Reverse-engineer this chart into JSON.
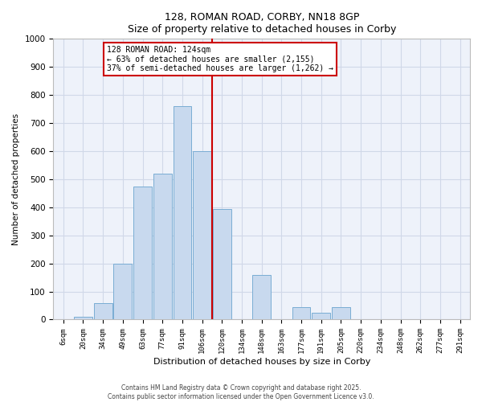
{
  "title": "128, ROMAN ROAD, CORBY, NN18 8GP",
  "subtitle": "Size of property relative to detached houses in Corby",
  "xlabel": "Distribution of detached houses by size in Corby",
  "ylabel": "Number of detached properties",
  "bar_labels": [
    "6sqm",
    "20sqm",
    "34sqm",
    "49sqm",
    "63sqm",
    "77sqm",
    "91sqm",
    "106sqm",
    "120sqm",
    "134sqm",
    "148sqm",
    "163sqm",
    "177sqm",
    "191sqm",
    "205sqm",
    "220sqm",
    "234sqm",
    "248sqm",
    "262sqm",
    "277sqm",
    "291sqm"
  ],
  "bar_heights": [
    0,
    10,
    60,
    200,
    475,
    520,
    760,
    600,
    395,
    0,
    160,
    0,
    45,
    25,
    45,
    0,
    0,
    0,
    0,
    0,
    0
  ],
  "bar_color": "#c8d9ee",
  "bar_edge_color": "#7aadd4",
  "vline_color": "#cc0000",
  "annotation_title": "128 ROMAN ROAD: 124sqm",
  "annotation_line2": "← 63% of detached houses are smaller (2,155)",
  "annotation_line3": "37% of semi-detached houses are larger (1,262) →",
  "annotation_box_color": "#ffffff",
  "annotation_box_edge": "#cc0000",
  "ylim": [
    0,
    1000
  ],
  "yticks": [
    0,
    100,
    200,
    300,
    400,
    500,
    600,
    700,
    800,
    900,
    1000
  ],
  "grid_color": "#d0d8e8",
  "bg_color": "#eef2fa",
  "footer_line1": "Contains HM Land Registry data © Crown copyright and database right 2025.",
  "footer_line2": "Contains public sector information licensed under the Open Government Licence v3.0."
}
